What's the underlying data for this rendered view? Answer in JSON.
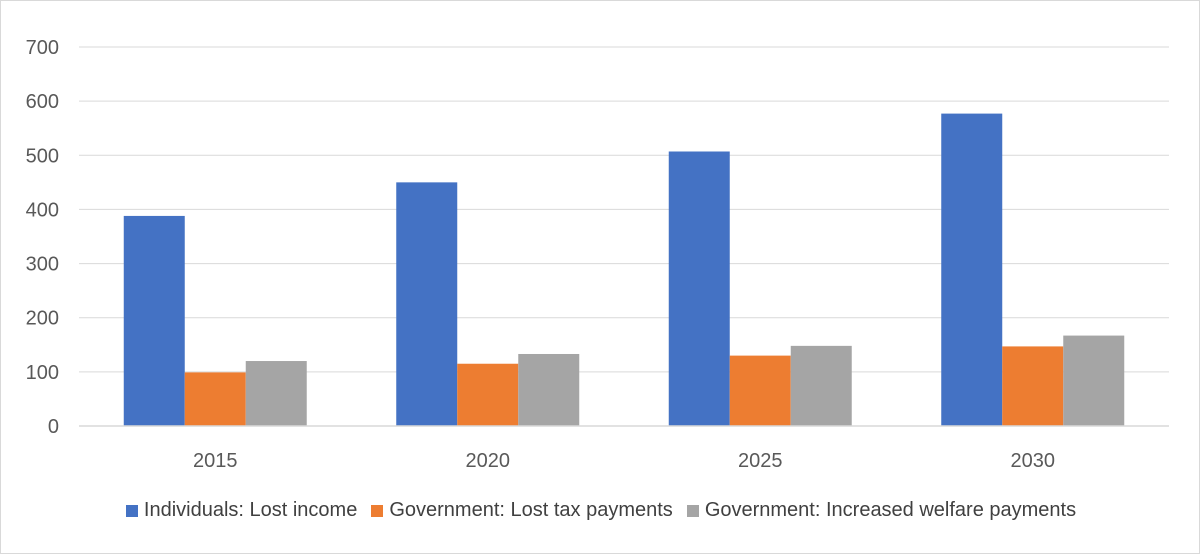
{
  "chart_data": {
    "type": "bar",
    "title": "",
    "xlabel": "",
    "ylabel": "",
    "categories": [
      "2015",
      "2020",
      "2025",
      "2030"
    ],
    "series": [
      {
        "name": "Individuals: Lost income",
        "color": "#4472c4",
        "values": [
          388,
          450,
          507,
          577
        ]
      },
      {
        "name": "Government: Lost tax payments",
        "color": "#ed7d31",
        "values": [
          99,
          115,
          130,
          147
        ]
      },
      {
        "name": "Government: Increased welfare payments",
        "color": "#a5a5a5",
        "values": [
          120,
          133,
          148,
          167
        ]
      }
    ],
    "ylim": [
      0,
      700
    ],
    "yticks": [
      "0",
      "100",
      "200",
      "300",
      "400",
      "500",
      "600",
      "700"
    ],
    "grid": true,
    "legend_position": "bottom"
  }
}
